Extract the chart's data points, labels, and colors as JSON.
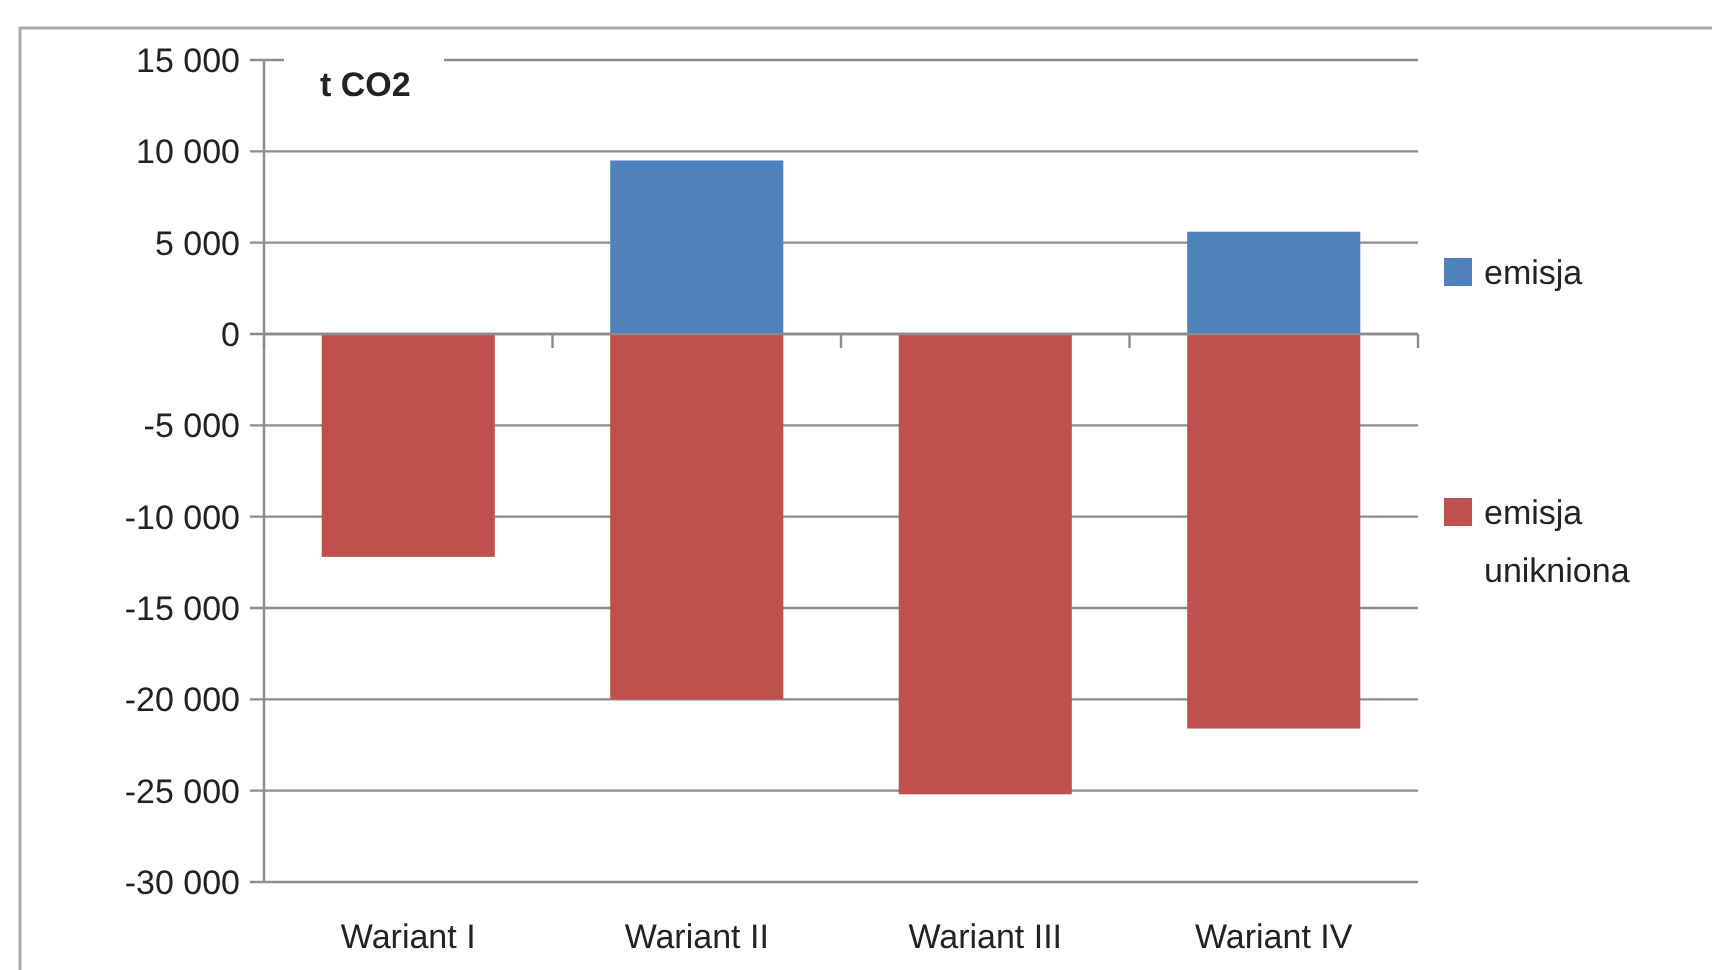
{
  "chart_data": {
    "type": "bar",
    "stacked": true,
    "ylabel": "t CO2",
    "categories": [
      "Wariant I",
      "Wariant II",
      "Wariant III",
      "Wariant IV"
    ],
    "series": [
      {
        "name": "emisja",
        "color": "#4f81bd",
        "values": [
          0,
          9500,
          0,
          5600
        ]
      },
      {
        "name": "emisja unikniona",
        "color": "#c0504d",
        "values": [
          -12200,
          -20000,
          -25200,
          -21600
        ]
      }
    ],
    "ylim": [
      -30000,
      15000
    ],
    "yticks": [
      {
        "value": -30000,
        "label": "-30 000"
      },
      {
        "value": -25000,
        "label": "-25 000"
      },
      {
        "value": -20000,
        "label": "-20 000"
      },
      {
        "value": -15000,
        "label": "-15 000"
      },
      {
        "value": -10000,
        "label": "-10 000"
      },
      {
        "value": -5000,
        "label": "-5 000"
      },
      {
        "value": 0,
        "label": "0"
      },
      {
        "value": 5000,
        "label": "5 000"
      },
      {
        "value": 10000,
        "label": "10 000"
      },
      {
        "value": 15000,
        "label": "15 000"
      }
    ],
    "grid": "y",
    "legend": "right"
  }
}
